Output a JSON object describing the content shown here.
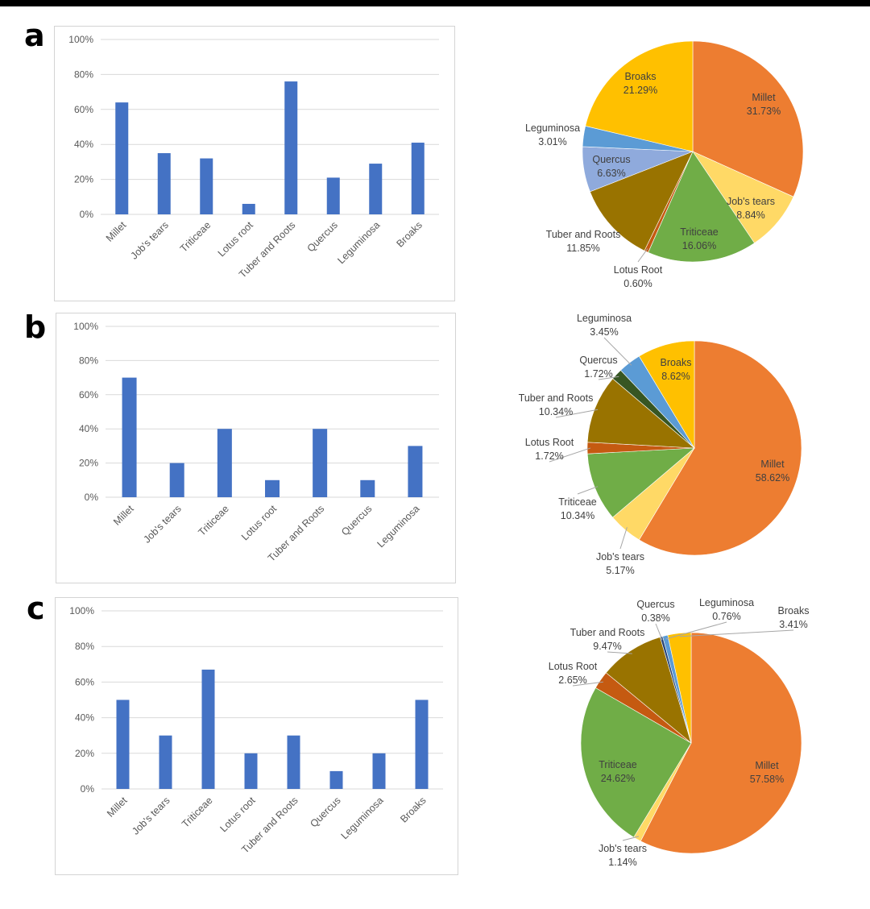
{
  "panels": [
    {
      "letter": "a",
      "bar": {
        "categories": [
          "Millet",
          "Job's tears",
          "Triticeae",
          "Lotus root",
          "Tuber and Roots",
          "Quercus",
          "Leguminosa",
          "Broaks"
        ],
        "values": [
          64,
          35,
          32,
          6,
          76,
          21,
          29,
          41
        ],
        "yticks": [
          "0%",
          "20%",
          "40%",
          "60%",
          "80%",
          "100%"
        ]
      },
      "pie": {
        "slices": [
          {
            "name": "Millet",
            "value": "31.73%",
            "color": "#ED7D31"
          },
          {
            "name": "Job's tears",
            "value": "8.84%",
            "color": "#FFD966"
          },
          {
            "name": "Triticeae",
            "value": "16.06%",
            "color": "#70AD47"
          },
          {
            "name": "Lotus Root",
            "value": "0.60%",
            "color": "#C55A11"
          },
          {
            "name": "Tuber and Roots",
            "value": "11.85%",
            "color": "#997300"
          },
          {
            "name": "Quercus",
            "value": "6.63%",
            "color": "#8FAADC"
          },
          {
            "name": "Leguminosa",
            "value": "3.01%",
            "color": "#5B9BD5"
          },
          {
            "name": "Broaks",
            "value": "21.29%",
            "color": "#FFC000"
          }
        ]
      }
    },
    {
      "letter": "b",
      "bar": {
        "categories": [
          "Millet",
          "Job's tears",
          "Triticeae",
          "Lotus root",
          "Tuber and Roots",
          "Quercus",
          "Leguminosa"
        ],
        "values": [
          70,
          20,
          40,
          10,
          40,
          10,
          30
        ],
        "yticks": [
          "0%",
          "20%",
          "40%",
          "60%",
          "80%",
          "100%"
        ]
      },
      "pie": {
        "slices": [
          {
            "name": "Millet",
            "value": "58.62%",
            "color": "#ED7D31"
          },
          {
            "name": "Job's tears",
            "value": "5.17%",
            "color": "#FFD966"
          },
          {
            "name": "Triticeae",
            "value": "10.34%",
            "color": "#70AD47"
          },
          {
            "name": "Lotus Root",
            "value": "1.72%",
            "color": "#C55A11"
          },
          {
            "name": "Tuber and Roots",
            "value": "10.34%",
            "color": "#997300"
          },
          {
            "name": "Quercus",
            "value": "1.72%",
            "color": "#375623"
          },
          {
            "name": "Leguminosa",
            "value": "3.45%",
            "color": "#5B9BD5"
          },
          {
            "name": "Broaks",
            "value": "8.62%",
            "color": "#FFC000"
          }
        ]
      }
    },
    {
      "letter": "c",
      "bar": {
        "categories": [
          "Millet",
          "Job's tears",
          "Triticeae",
          "Lotus root",
          "Tuber and Roots",
          "Quercus",
          "Leguminosa",
          "Broaks"
        ],
        "values": [
          50,
          30,
          67,
          20,
          30,
          10,
          20,
          50
        ],
        "yticks": [
          "0%",
          "20%",
          "40%",
          "60%",
          "80%",
          "100%"
        ]
      },
      "pie": {
        "slices": [
          {
            "name": "Millet",
            "value": "57.58%",
            "color": "#ED7D31"
          },
          {
            "name": "Job's tears",
            "value": "1.14%",
            "color": "#FFD966"
          },
          {
            "name": "Triticeae",
            "value": "24.62%",
            "color": "#70AD47"
          },
          {
            "name": "Lotus Root",
            "value": "2.65%",
            "color": "#C55A11"
          },
          {
            "name": "Tuber and Roots",
            "value": "9.47%",
            "color": "#997300"
          },
          {
            "name": "Quercus",
            "value": "0.38%",
            "color": "#264478"
          },
          {
            "name": "Leguminosa",
            "value": "0.76%",
            "color": "#5B9BD5"
          },
          {
            "name": "Broaks",
            "value": "3.41%",
            "color": "#FFC000"
          }
        ]
      }
    }
  ],
  "colors": {
    "bar": "#4472C4"
  },
  "chart_data": [
    {
      "type": "bar",
      "categories": [
        "Millet",
        "Job's tears",
        "Triticeae",
        "Lotus root",
        "Tuber and Roots",
        "Quercus",
        "Leguminosa",
        "Broaks"
      ],
      "values": [
        64,
        35,
        32,
        6,
        76,
        21,
        29,
        41
      ],
      "ylim": [
        0,
        100
      ],
      "grid": true
    },
    {
      "type": "pie",
      "categories": [
        "Millet",
        "Job's tears",
        "Triticeae",
        "Lotus Root",
        "Tuber and Roots",
        "Quercus",
        "Leguminosa",
        "Broaks"
      ],
      "values": [
        31.73,
        8.84,
        16.06,
        0.6,
        11.85,
        6.63,
        3.01,
        21.29
      ]
    },
    {
      "type": "bar",
      "categories": [
        "Millet",
        "Job's tears",
        "Triticeae",
        "Lotus root",
        "Tuber and Roots",
        "Quercus",
        "Leguminosa"
      ],
      "values": [
        70,
        20,
        40,
        10,
        40,
        10,
        30
      ],
      "ylim": [
        0,
        100
      ],
      "grid": true
    },
    {
      "type": "pie",
      "categories": [
        "Millet",
        "Job's tears",
        "Triticeae",
        "Lotus Root",
        "Tuber and Roots",
        "Quercus",
        "Leguminosa",
        "Broaks"
      ],
      "values": [
        58.62,
        5.17,
        10.34,
        1.72,
        10.34,
        1.72,
        3.45,
        8.62
      ]
    },
    {
      "type": "bar",
      "categories": [
        "Millet",
        "Job's tears",
        "Triticeae",
        "Lotus root",
        "Tuber and Roots",
        "Quercus",
        "Leguminosa",
        "Broaks"
      ],
      "values": [
        50,
        30,
        67,
        20,
        30,
        10,
        20,
        50
      ],
      "ylim": [
        0,
        100
      ],
      "grid": true
    },
    {
      "type": "pie",
      "categories": [
        "Millet",
        "Job's tears",
        "Triticeae",
        "Lotus Root",
        "Tuber and Roots",
        "Quercus",
        "Leguminosa",
        "Broaks"
      ],
      "values": [
        57.58,
        1.14,
        24.62,
        2.65,
        9.47,
        0.38,
        0.76,
        3.41
      ]
    }
  ]
}
